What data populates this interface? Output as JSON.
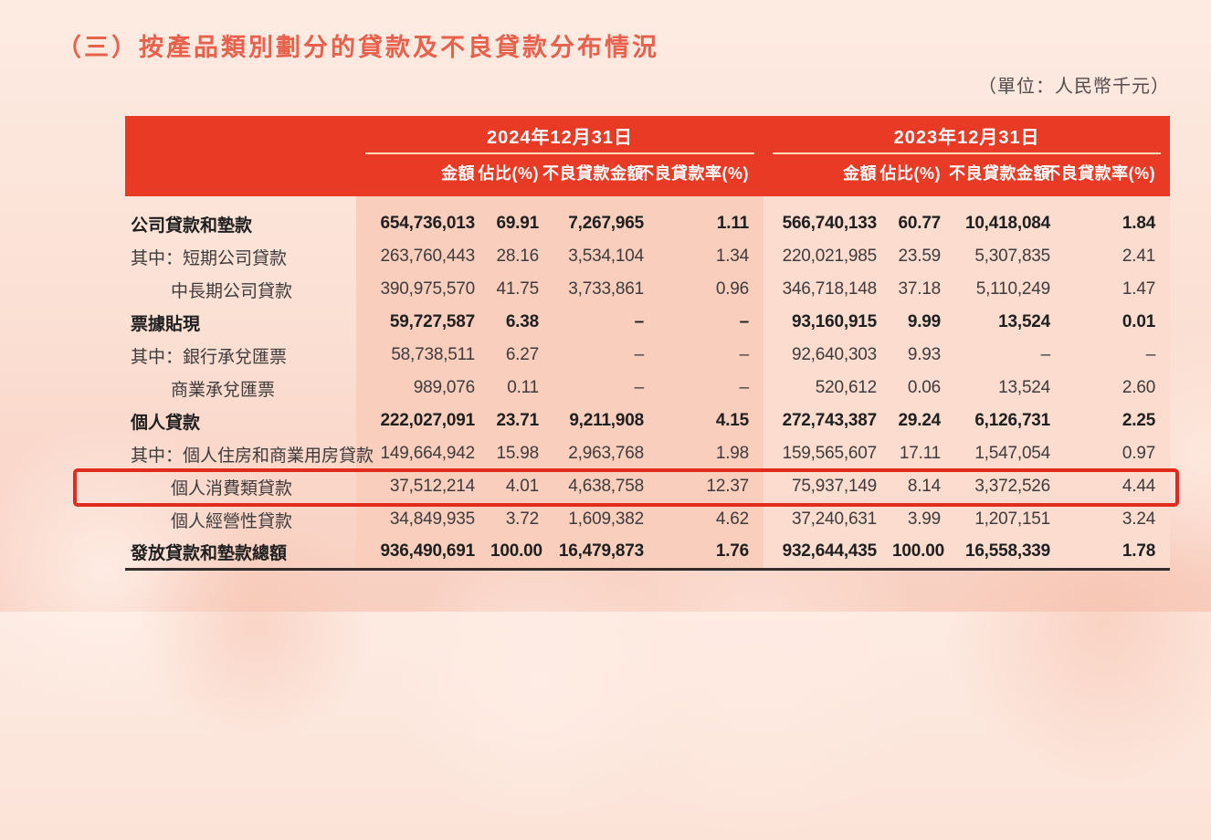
{
  "page": {
    "title": "（三）按產品類別劃分的貸款及不良貸款分布情況",
    "unit_note": "（單位：人民幣千元）"
  },
  "colors": {
    "header_red": "#e93a26",
    "block_2024_bg": "#f9cebd",
    "block_2023_bg": "#fbdccf",
    "highlight_red": "#e02b1d",
    "title_color": "#e8614d"
  },
  "table": {
    "column_groups": [
      {
        "label": "2024年12月31日",
        "columns": [
          "金額",
          "佔比(%)",
          "不良貸款金額",
          "不良貸款率(%)"
        ]
      },
      {
        "label": "2023年12月31日",
        "columns": [
          "金額",
          "佔比(%)",
          "不良貸款金額",
          "不良貸款率(%)"
        ]
      }
    ],
    "rows": [
      {
        "label": "公司貸款和墊款",
        "indent": 0,
        "bold": true,
        "highlight": false,
        "values": [
          "654,736,013",
          "69.91",
          "7,267,965",
          "1.11",
          "566,740,133",
          "60.77",
          "10,418,084",
          "1.84"
        ]
      },
      {
        "label": "其中：短期公司貸款",
        "indent": 0,
        "bold": false,
        "highlight": false,
        "values": [
          "263,760,443",
          "28.16",
          "3,534,104",
          "1.34",
          "220,021,985",
          "23.59",
          "5,307,835",
          "2.41"
        ]
      },
      {
        "label": "中長期公司貸款",
        "indent": 1,
        "bold": false,
        "highlight": false,
        "values": [
          "390,975,570",
          "41.75",
          "3,733,861",
          "0.96",
          "346,718,148",
          "37.18",
          "5,110,249",
          "1.47"
        ]
      },
      {
        "label": "票據貼現",
        "indent": 0,
        "bold": true,
        "highlight": false,
        "values": [
          "59,727,587",
          "6.38",
          "–",
          "–",
          "93,160,915",
          "9.99",
          "13,524",
          "0.01"
        ]
      },
      {
        "label": "其中：銀行承兌匯票",
        "indent": 0,
        "bold": false,
        "highlight": false,
        "values": [
          "58,738,511",
          "6.27",
          "–",
          "–",
          "92,640,303",
          "9.93",
          "–",
          "–"
        ]
      },
      {
        "label": "商業承兌匯票",
        "indent": 1,
        "bold": false,
        "highlight": false,
        "values": [
          "989,076",
          "0.11",
          "–",
          "–",
          "520,612",
          "0.06",
          "13,524",
          "2.60"
        ]
      },
      {
        "label": "個人貸款",
        "indent": 0,
        "bold": true,
        "highlight": false,
        "values": [
          "222,027,091",
          "23.71",
          "9,211,908",
          "4.15",
          "272,743,387",
          "29.24",
          "6,126,731",
          "2.25"
        ]
      },
      {
        "label": "其中：個人住房和商業用房貸款",
        "indent": 0,
        "bold": false,
        "highlight": false,
        "values": [
          "149,664,942",
          "15.98",
          "2,963,768",
          "1.98",
          "159,565,607",
          "17.11",
          "1,547,054",
          "0.97"
        ]
      },
      {
        "label": "個人消費類貸款",
        "indent": 1,
        "bold": false,
        "highlight": true,
        "values": [
          "37,512,214",
          "4.01",
          "4,638,758",
          "12.37",
          "75,937,149",
          "8.14",
          "3,372,526",
          "4.44"
        ]
      },
      {
        "label": "個人經營性貸款",
        "indent": 1,
        "bold": false,
        "highlight": false,
        "values": [
          "34,849,935",
          "3.72",
          "1,609,382",
          "4.62",
          "37,240,631",
          "3.99",
          "1,207,151",
          "3.24"
        ]
      },
      {
        "label": "發放貸款和墊款總額",
        "indent": 0,
        "bold": true,
        "highlight": false,
        "values": [
          "936,490,691",
          "100.00",
          "16,479,873",
          "1.76",
          "932,644,435",
          "100.00",
          "16,558,339",
          "1.78"
        ]
      }
    ]
  }
}
